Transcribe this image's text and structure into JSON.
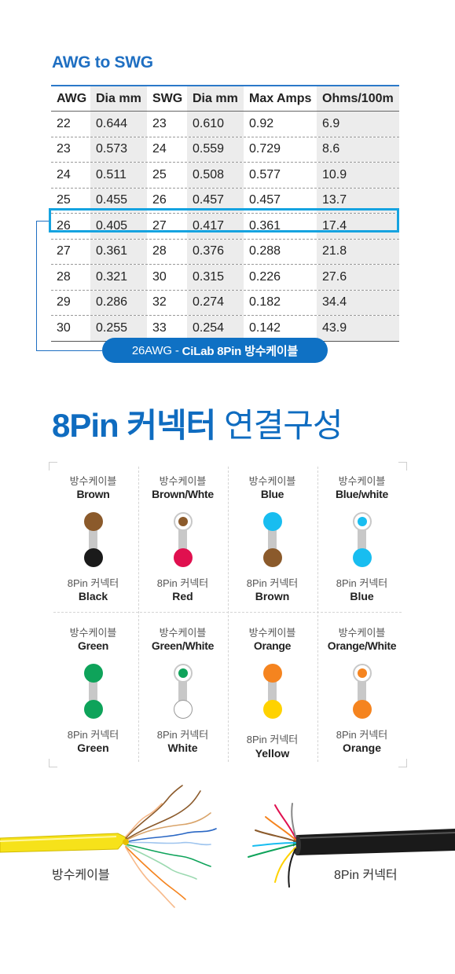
{
  "table": {
    "title": "AWG to SWG",
    "headers": [
      "AWG",
      "Dia mm",
      "SWG",
      "Dia mm",
      "Max Amps",
      "Ohms/100m"
    ],
    "rows": [
      [
        "22",
        "0.644",
        "23",
        "0.610",
        "0.92",
        "6.9"
      ],
      [
        "23",
        "0.573",
        "24",
        "0.559",
        "0.729",
        "8.6"
      ],
      [
        "24",
        "0.511",
        "25",
        "0.508",
        "0.577",
        "10.9"
      ],
      [
        "25",
        "0.455",
        "26",
        "0.457",
        "0.457",
        "13.7"
      ],
      [
        "26",
        "0.405",
        "27",
        "0.417",
        "0.361",
        "17.4"
      ],
      [
        "27",
        "0.361",
        "28",
        "0.376",
        "0.288",
        "21.8"
      ],
      [
        "28",
        "0.321",
        "30",
        "0.315",
        "0.226",
        "27.6"
      ],
      [
        "29",
        "0.286",
        "32",
        "0.274",
        "0.182",
        "34.4"
      ],
      [
        "30",
        "0.255",
        "33",
        "0.254",
        "0.142",
        "43.9"
      ]
    ],
    "highlight_row": 4,
    "callout_prefix": "26AWG - ",
    "callout_strong": "CiLab 8Pin 방수케이블",
    "accent": "#0f71c4",
    "highlight_color": "#15a3e0"
  },
  "heading": {
    "strong": "8Pin 커넥터",
    "light": "연결구성"
  },
  "pins": [
    {
      "top_label": "방수케이블",
      "top_color_name": "Brown",
      "top_color": "#8b5a2b",
      "top_style": "solid",
      "bottom_label": "8Pin 커넥터",
      "bottom_color_name": "Black",
      "bottom_color": "#1a1a1a"
    },
    {
      "top_label": "방수케이블",
      "top_color_name": "Brown/Whte",
      "top_color": "#8b5a2b",
      "top_style": "ring",
      "bottom_label": "8Pin 커넥터",
      "bottom_color_name": "Red",
      "bottom_color": "#e0104f"
    },
    {
      "top_label": "방수케이블",
      "top_color_name": "Blue",
      "top_color": "#18bdf0",
      "top_style": "solid",
      "bottom_label": "8Pin 커넥터",
      "bottom_color_name": "Brown",
      "bottom_color": "#8b5a2b"
    },
    {
      "top_label": "방수케이블",
      "top_color_name": "Blue/white",
      "top_color": "#18bdf0",
      "top_style": "ring",
      "bottom_label": "8Pin 커넥터",
      "bottom_color_name": "Blue",
      "bottom_color": "#18bdf0"
    },
    {
      "top_label": "방수케이블",
      "top_color_name": "Green",
      "top_color": "#0ea35a",
      "top_style": "solid",
      "bottom_label": "8Pin 커넥터",
      "bottom_color_name": "Green",
      "bottom_color": "#0ea35a"
    },
    {
      "top_label": "방수케이블",
      "top_color_name": "Green/White",
      "top_color": "#0ea35a",
      "top_style": "ring",
      "bottom_label": "8Pin 커넥터",
      "bottom_color_name": "White",
      "bottom_color": "#ffffff"
    },
    {
      "top_label": "방수케이블",
      "top_color_name": "Orange",
      "top_color": "#f5841f",
      "top_style": "solid",
      "bottom_label": "8Pin 커넥터",
      "bottom_color_name": "Yellow",
      "bottom_color": "#ffd200"
    },
    {
      "top_label": "방수케이블",
      "top_color_name": "Orange/White",
      "top_color": "#f5841f",
      "top_style": "ring",
      "bottom_label": "8Pin 커넥터",
      "bottom_color_name": "Orange",
      "bottom_color": "#f5841f"
    }
  ],
  "cables": {
    "left_caption": "방수케이블",
    "right_caption": "8Pin 커넥터"
  }
}
